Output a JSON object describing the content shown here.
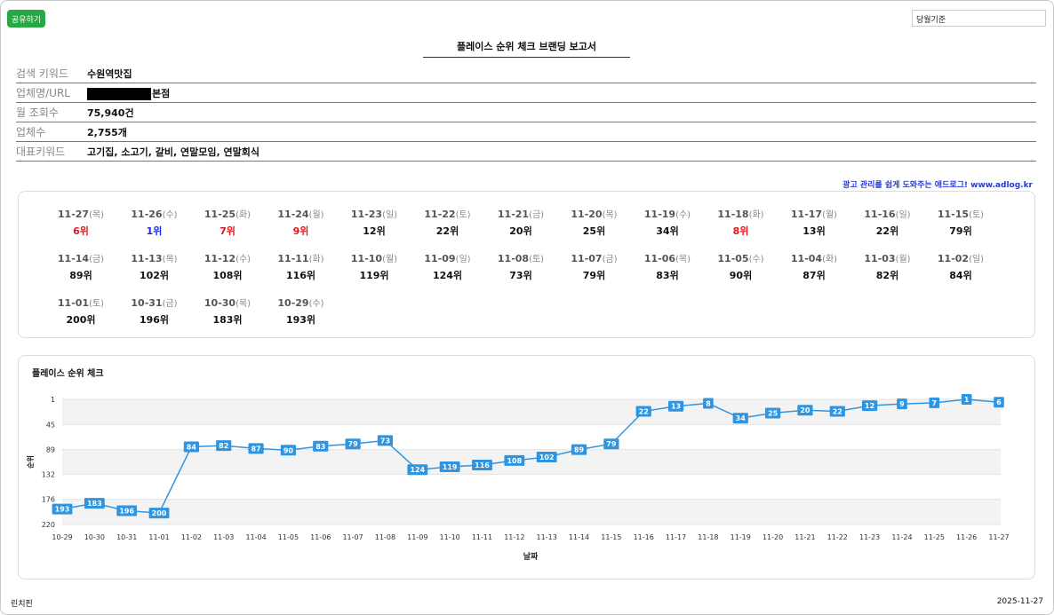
{
  "header": {
    "share_label": "공유하기",
    "select_value": "당월기준",
    "title": "플레이스 순위 체크 브랜딩 보고서"
  },
  "info": [
    {
      "label": "검색 키워드",
      "value": "수원역맛집"
    },
    {
      "label": "업체명/URL",
      "value": "본점",
      "redacted": true
    },
    {
      "label": "월 조회수",
      "value": "75,940건"
    },
    {
      "label": "업체수",
      "value": "2,755개"
    },
    {
      "label": "대표키워드",
      "value": "고기집, 소고기, 갈비, 연말모임, 연말회식"
    }
  ],
  "ad_link": "광고 관리를 쉽게 도와주는 애드로그! www.adlog.kr",
  "ranks": [
    {
      "date": "11-27",
      "dow": "(목)",
      "rank": "6위",
      "color": "red"
    },
    {
      "date": "11-26",
      "dow": "(수)",
      "rank": "1위",
      "color": "blue"
    },
    {
      "date": "11-25",
      "dow": "(화)",
      "rank": "7위",
      "color": "red"
    },
    {
      "date": "11-24",
      "dow": "(월)",
      "rank": "9위",
      "color": "red"
    },
    {
      "date": "11-23",
      "dow": "(일)",
      "rank": "12위",
      "color": ""
    },
    {
      "date": "11-22",
      "dow": "(토)",
      "rank": "22위",
      "color": ""
    },
    {
      "date": "11-21",
      "dow": "(금)",
      "rank": "20위",
      "color": ""
    },
    {
      "date": "11-20",
      "dow": "(목)",
      "rank": "25위",
      "color": ""
    },
    {
      "date": "11-19",
      "dow": "(수)",
      "rank": "34위",
      "color": ""
    },
    {
      "date": "11-18",
      "dow": "(화)",
      "rank": "8위",
      "color": "red"
    },
    {
      "date": "11-17",
      "dow": "(월)",
      "rank": "13위",
      "color": ""
    },
    {
      "date": "11-16",
      "dow": "(일)",
      "rank": "22위",
      "color": ""
    },
    {
      "date": "11-15",
      "dow": "(토)",
      "rank": "79위",
      "color": ""
    },
    {
      "date": "11-14",
      "dow": "(금)",
      "rank": "89위",
      "color": ""
    },
    {
      "date": "11-13",
      "dow": "(목)",
      "rank": "102위",
      "color": ""
    },
    {
      "date": "11-12",
      "dow": "(수)",
      "rank": "108위",
      "color": ""
    },
    {
      "date": "11-11",
      "dow": "(화)",
      "rank": "116위",
      "color": ""
    },
    {
      "date": "11-10",
      "dow": "(월)",
      "rank": "119위",
      "color": ""
    },
    {
      "date": "11-09",
      "dow": "(일)",
      "rank": "124위",
      "color": ""
    },
    {
      "date": "11-08",
      "dow": "(토)",
      "rank": "73위",
      "color": ""
    },
    {
      "date": "11-07",
      "dow": "(금)",
      "rank": "79위",
      "color": ""
    },
    {
      "date": "11-06",
      "dow": "(목)",
      "rank": "83위",
      "color": ""
    },
    {
      "date": "11-05",
      "dow": "(수)",
      "rank": "90위",
      "color": ""
    },
    {
      "date": "11-04",
      "dow": "(화)",
      "rank": "87위",
      "color": ""
    },
    {
      "date": "11-03",
      "dow": "(월)",
      "rank": "82위",
      "color": ""
    },
    {
      "date": "11-02",
      "dow": "(일)",
      "rank": "84위",
      "color": ""
    },
    {
      "date": "11-01",
      "dow": "(토)",
      "rank": "200위",
      "color": ""
    },
    {
      "date": "10-31",
      "dow": "(금)",
      "rank": "196위",
      "color": ""
    },
    {
      "date": "10-30",
      "dow": "(목)",
      "rank": "183위",
      "color": ""
    },
    {
      "date": "10-29",
      "dow": "(수)",
      "rank": "193위",
      "color": ""
    }
  ],
  "chart_data": {
    "type": "line",
    "title": "플레이스 순위 체크",
    "xlabel": "날짜",
    "ylabel": "순위",
    "y_inverted": true,
    "ylim": [
      1,
      220
    ],
    "yticks": [
      1,
      45,
      89,
      132,
      176,
      220
    ],
    "categories": [
      "10-29",
      "10-30",
      "10-31",
      "11-01",
      "11-02",
      "11-03",
      "11-04",
      "11-05",
      "11-06",
      "11-07",
      "11-08",
      "11-09",
      "11-10",
      "11-11",
      "11-12",
      "11-13",
      "11-14",
      "11-15",
      "11-16",
      "11-17",
      "11-18",
      "11-19",
      "11-20",
      "11-21",
      "11-22",
      "11-23",
      "11-24",
      "11-25",
      "11-26",
      "11-27"
    ],
    "series": [
      {
        "name": "순위",
        "values": [
          193,
          183,
          196,
          200,
          84,
          82,
          87,
          90,
          83,
          79,
          73,
          124,
          119,
          116,
          108,
          102,
          89,
          79,
          22,
          13,
          8,
          34,
          25,
          20,
          22,
          12,
          9,
          7,
          1,
          6
        ]
      }
    ],
    "line_color": "#2f95e0"
  },
  "footer": {
    "left": "린치핀",
    "right": "2025-11-27"
  }
}
